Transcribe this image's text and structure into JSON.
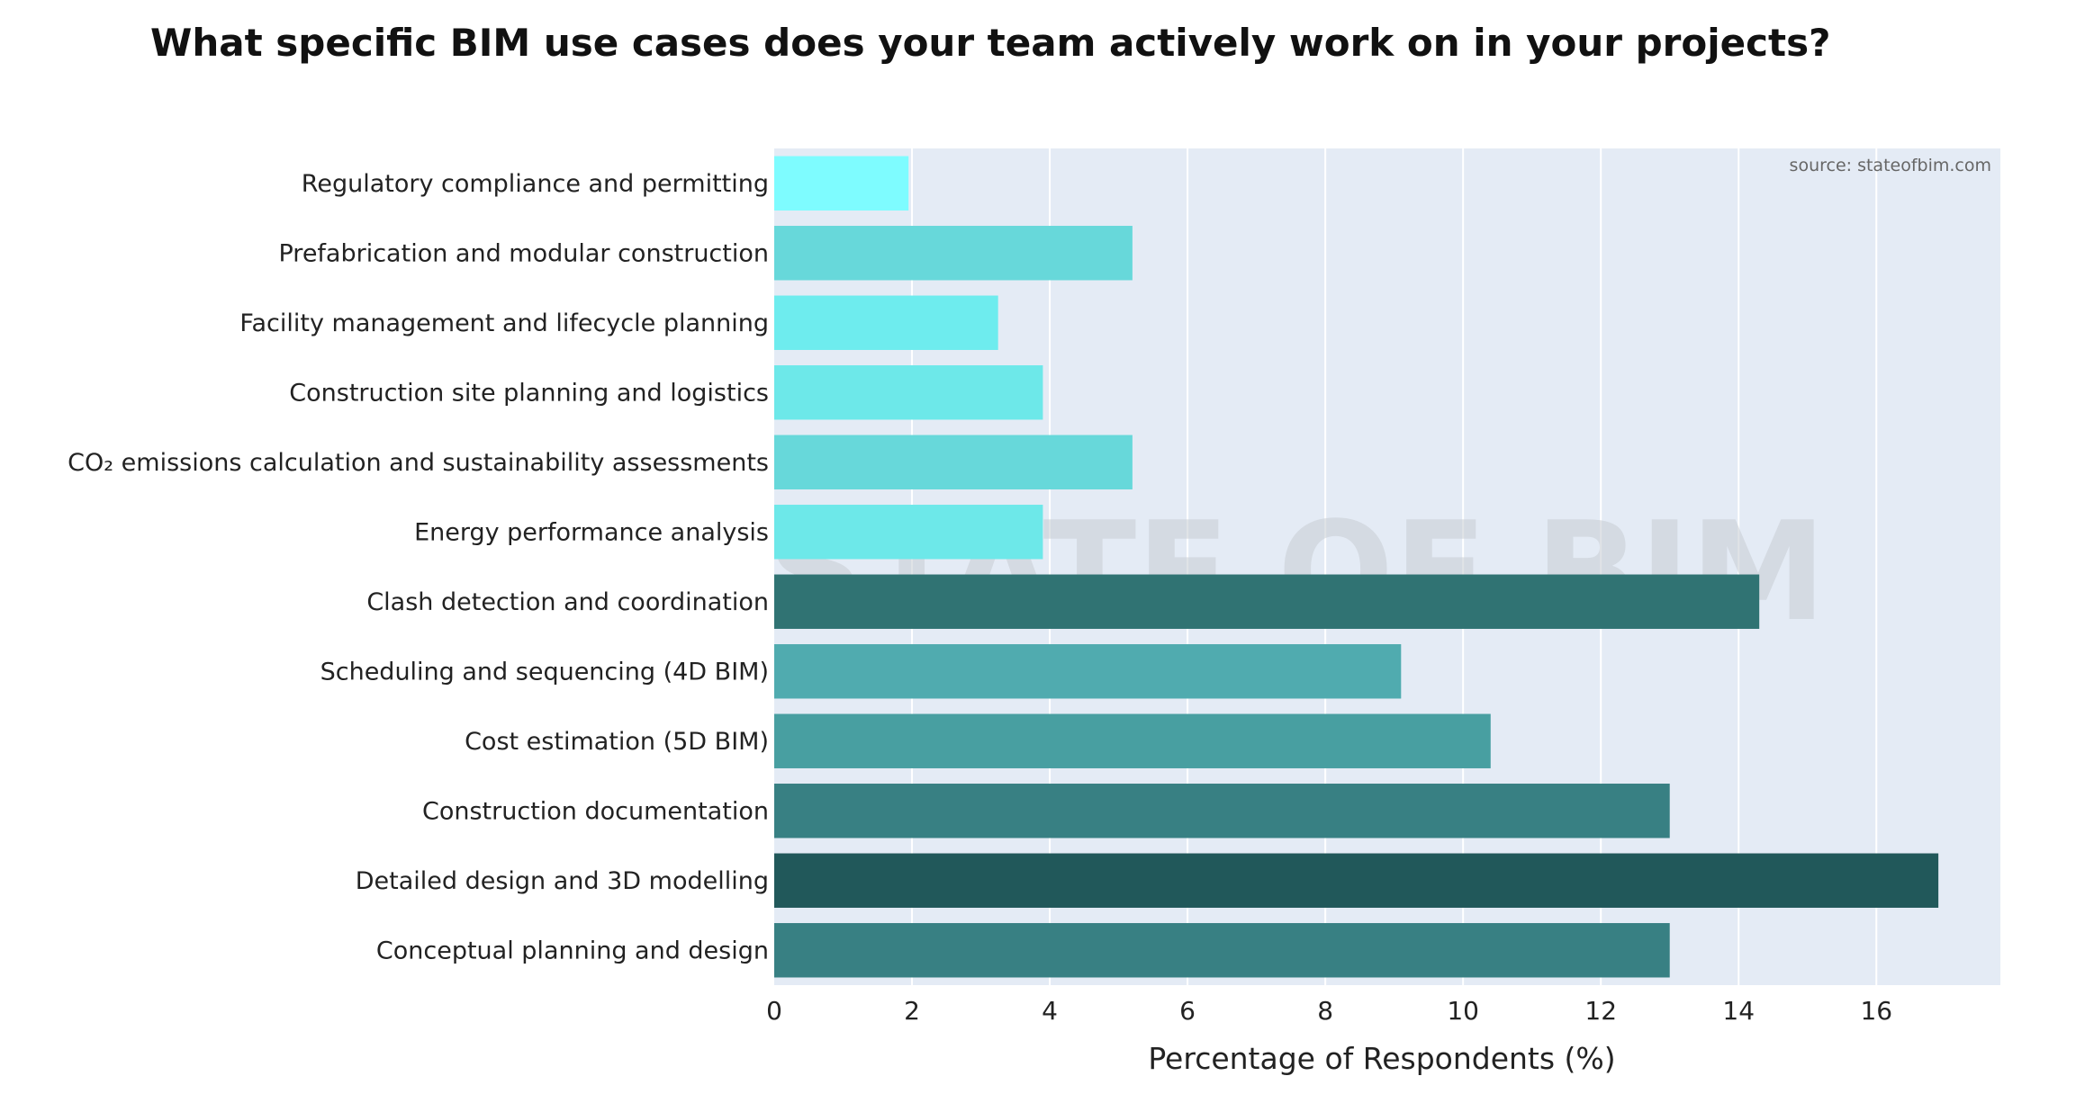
{
  "chart_data": {
    "type": "bar",
    "orientation": "horizontal",
    "title": "What specific BIM use cases does your team actively work on in your projects?",
    "xlabel": "Percentage of Respondents (%)",
    "ylabel": "",
    "xlim": [
      0,
      17.8
    ],
    "xticks": [
      "0",
      "2",
      "4",
      "6",
      "8",
      "10",
      "12",
      "14",
      "16"
    ],
    "grid": true,
    "source": "source: stateofbim.com",
    "watermark": "STATE OF BIM",
    "categories": [
      "Regulatory compliance and permitting",
      "Prefabrication and modular construction",
      "Facility management and lifecycle planning",
      "Construction site planning and logistics",
      "CO₂ emissions calculation and sustainability assessments",
      "Energy performance analysis",
      "Clash detection and coordination",
      "Scheduling and sequencing (4D BIM)",
      "Cost estimation (5D BIM)",
      "Construction documentation",
      "Detailed design and 3D modelling",
      "Conceptual planning and design"
    ],
    "values": [
      1.95,
      5.2,
      3.25,
      3.9,
      5.2,
      3.9,
      14.3,
      9.1,
      10.4,
      13.0,
      16.9,
      13.0
    ],
    "colors": [
      "#7efcff",
      "#67d8da",
      "#6eecee",
      "#6de8e9",
      "#67d8da",
      "#6de8e9",
      "#307373",
      "#50abaf",
      "#489fa1",
      "#388083",
      "#21585a",
      "#388083"
    ],
    "plot_background": "#e4ebf5",
    "gridline_color": "#ffffff"
  }
}
